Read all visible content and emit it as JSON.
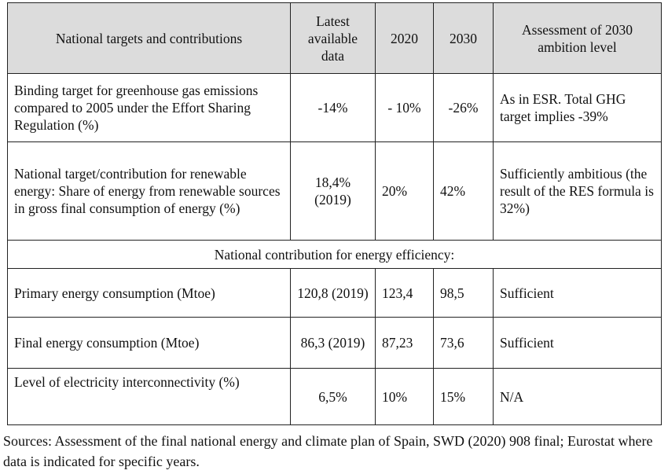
{
  "table": {
    "headers": [
      "National targets and contributions",
      "Latest available data",
      "2020",
      "2030",
      "Assessment of 2030 ambition level"
    ],
    "rows": [
      {
        "label": "Binding target for greenhouse gas emissions compared to 2005 under the Effort Sharing Regulation (%)",
        "latest": "-14%",
        "y2020": "- 10%",
        "y2030": "-26%",
        "assessment": "As in ESR. Total GHG target implies -39%"
      },
      {
        "label": "National target/contribution for renewable energy: Share of energy from renewable sources in gross final consumption of energy (%)",
        "latest": "18,4% (2019)",
        "y2020": "20%",
        "y2030": "42%",
        "assessment": "Sufficiently ambitious (the result of the RES formula is 32%)"
      },
      {
        "label": "Primary energy consumption (Mtoe)",
        "latest": "120,8 (2019)",
        "y2020": "123,4",
        "y2030": "98,5",
        "assessment": "Sufficient"
      },
      {
        "label": "Final energy consumption (Mtoe)",
        "latest": "86,3 (2019)",
        "y2020": "87,23",
        "y2030": "73,6",
        "assessment": "Sufficient"
      },
      {
        "label": "Level of electricity interconnectivity (%)",
        "latest": "6,5%",
        "y2020": "10%",
        "y2030": "15%",
        "assessment": "N/A"
      }
    ],
    "section_row": "National contribution for energy efficiency:"
  },
  "sources": "Sources: Assessment of the final national energy and climate plan of Spain, SWD (2020) 908 final; Eurostat where data is indicated for specific years."
}
